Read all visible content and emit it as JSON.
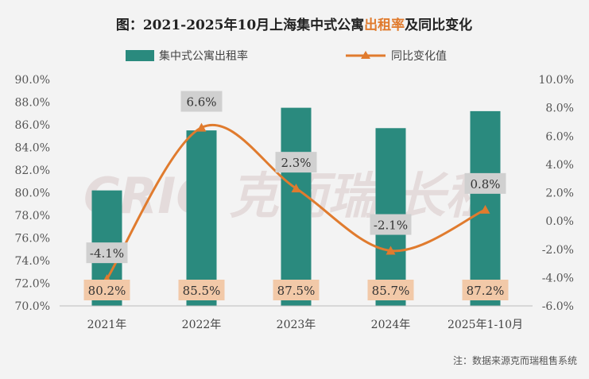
{
  "title": {
    "prefix": "图：2021-2025年10月上海集中式公寓",
    "highlight": "出租率",
    "suffix": "及同比变化"
  },
  "colors": {
    "bar": "#2a8a7e",
    "line": "#e07b2e",
    "bar_label_bg": "#f2c9a8",
    "line_label_bg": "#d0d0d0"
  },
  "watermark": "CRIC 克而瑞·长租",
  "note": "注：数据来源克而瑞租售系统",
  "chart_data": {
    "type": "bar",
    "categories": [
      "2021年",
      "2022年",
      "2023年",
      "2024年",
      "2025年1-10月"
    ],
    "series": [
      {
        "name": "集中式公寓出租率",
        "type": "bar",
        "axis": "left",
        "values": [
          80.2,
          85.5,
          87.5,
          85.7,
          87.2
        ],
        "labels": [
          "80.2%",
          "85.5%",
          "87.5%",
          "85.7%",
          "87.2%"
        ]
      },
      {
        "name": "同比变化值",
        "type": "line",
        "axis": "right",
        "values": [
          -4.1,
          6.6,
          2.3,
          -2.1,
          0.8
        ],
        "labels": [
          "-4.1%",
          "6.6%",
          "2.3%",
          "-2.1%",
          "0.8%"
        ]
      }
    ],
    "y_left": {
      "min": 70,
      "max": 90,
      "step": 2,
      "ticks": [
        "70.0%",
        "72.0%",
        "74.0%",
        "76.0%",
        "78.0%",
        "80.0%",
        "82.0%",
        "84.0%",
        "86.0%",
        "88.0%",
        "90.0%"
      ]
    },
    "y_right": {
      "min": -6,
      "max": 10,
      "step": 2,
      "ticks": [
        "-6.0%",
        "-4.0%",
        "-2.0%",
        "0.0%",
        "2.0%",
        "4.0%",
        "6.0%",
        "8.0%",
        "10.0%"
      ]
    },
    "legend": [
      "集中式公寓出租率",
      "同比变化值"
    ],
    "legend_position": "top"
  }
}
